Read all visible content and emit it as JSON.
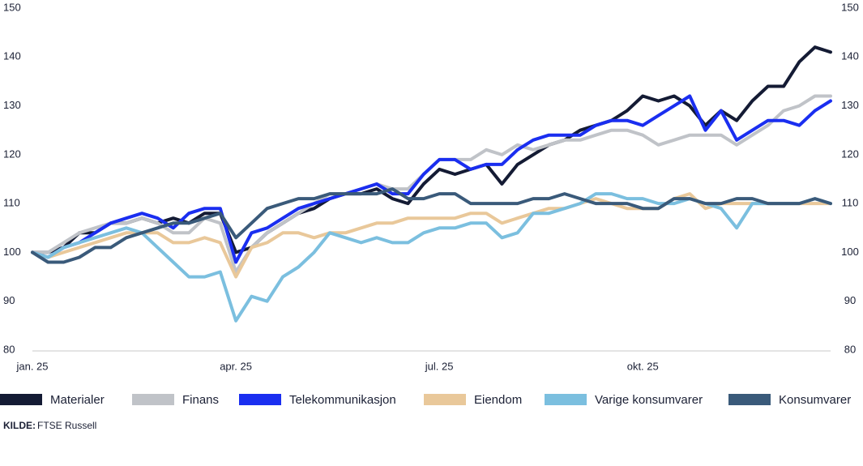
{
  "chart_data": {
    "type": "line",
    "categories": [
      "jan. 25",
      null,
      null,
      null,
      null,
      null,
      null,
      null,
      null,
      null,
      null,
      null,
      null,
      "apr. 25",
      null,
      null,
      null,
      null,
      null,
      null,
      null,
      null,
      null,
      null,
      null,
      null,
      "jul. 25",
      null,
      null,
      null,
      null,
      null,
      null,
      null,
      null,
      null,
      null,
      null,
      null,
      "okt. 25",
      null,
      null,
      null,
      null,
      null,
      null,
      null,
      null,
      null,
      null,
      null,
      null
    ],
    "ylim": [
      80,
      150
    ],
    "yticks": [
      80,
      90,
      100,
      110,
      120,
      130,
      140,
      150
    ],
    "y2lim": [
      80,
      150
    ],
    "y2ticks": [
      80,
      90,
      100,
      110,
      120,
      130,
      140,
      150
    ],
    "grid": false,
    "legend": "bottom",
    "series": [
      {
        "name": "Materialer",
        "color": "#141b34",
        "values": [
          100,
          100,
          101,
          104,
          104,
          106,
          106,
          107,
          106,
          107,
          106,
          108,
          108,
          100,
          101,
          104,
          106,
          108,
          109,
          111,
          112,
          112,
          113,
          111,
          110,
          114,
          117,
          116,
          117,
          118,
          114,
          118,
          120,
          122,
          123,
          125,
          126,
          127,
          129,
          132,
          131,
          132,
          130,
          126,
          129,
          127,
          131,
          134,
          134,
          139,
          142,
          141
        ]
      },
      {
        "name": "Finans",
        "color": "#c0c3c8",
        "values": [
          100,
          100,
          102,
          104,
          105,
          106,
          106,
          107,
          106,
          104,
          104,
          107,
          106,
          96,
          101,
          104,
          106,
          108,
          110,
          112,
          112,
          113,
          114,
          113,
          113,
          116,
          119,
          119,
          119,
          121,
          120,
          122,
          121,
          122,
          123,
          123,
          124,
          125,
          125,
          124,
          122,
          123,
          124,
          124,
          124,
          122,
          124,
          126,
          129,
          130,
          132,
          132
        ]
      },
      {
        "name": "Telekommunikasjon",
        "color": "#1a2ef0",
        "values": [
          100,
          99,
          101,
          102,
          104,
          106,
          107,
          108,
          107,
          105,
          108,
          109,
          109,
          98,
          104,
          105,
          107,
          109,
          110,
          111,
          112,
          113,
          114,
          112,
          112,
          116,
          119,
          119,
          117,
          118,
          118,
          121,
          123,
          124,
          124,
          124,
          126,
          127,
          127,
          126,
          128,
          130,
          132,
          125,
          129,
          123,
          125,
          127,
          127,
          126,
          129,
          131
        ]
      },
      {
        "name": "Eiendom",
        "color": "#e9c89a",
        "values": [
          100,
          99,
          100,
          101,
          102,
          103,
          104,
          104,
          104,
          102,
          102,
          103,
          102,
          95,
          101,
          102,
          104,
          104,
          103,
          104,
          104,
          105,
          106,
          106,
          107,
          107,
          107,
          107,
          108,
          108,
          106,
          107,
          108,
          109,
          109,
          110,
          111,
          110,
          109,
          109,
          109,
          111,
          112,
          109,
          110,
          110,
          110,
          110,
          110,
          110,
          110,
          110
        ]
      },
      {
        "name": "Varige konsumvarer",
        "color": "#7bbfdf",
        "values": [
          100,
          99,
          101,
          102,
          103,
          104,
          105,
          104,
          101,
          98,
          95,
          95,
          96,
          86,
          91,
          90,
          95,
          97,
          100,
          104,
          103,
          102,
          103,
          102,
          102,
          104,
          105,
          105,
          106,
          106,
          103,
          104,
          108,
          108,
          109,
          110,
          112,
          112,
          111,
          111,
          110,
          110,
          111,
          110,
          109,
          105,
          110,
          110,
          110,
          110,
          111,
          110
        ]
      },
      {
        "name": "Konsumvarer",
        "color": "#3a5a7a",
        "values": [
          100,
          98,
          98,
          99,
          101,
          101,
          103,
          104,
          105,
          106,
          106,
          107,
          108,
          103,
          106,
          109,
          110,
          111,
          111,
          112,
          112,
          112,
          112,
          113,
          111,
          111,
          112,
          112,
          110,
          110,
          110,
          110,
          111,
          111,
          112,
          111,
          110,
          110,
          110,
          109,
          109,
          111,
          111,
          110,
          110,
          111,
          111,
          110,
          110,
          110,
          111,
          110
        ]
      }
    ],
    "source_label": "KILDE:",
    "source": "FTSE Russell"
  }
}
